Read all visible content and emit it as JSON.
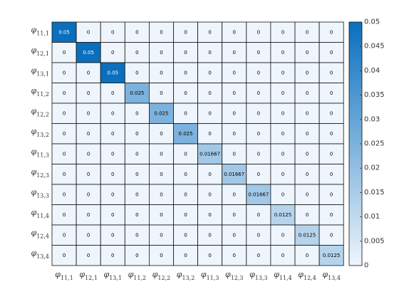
{
  "chart_data": {
    "type": "heatmap",
    "title": "",
    "xlabel": "",
    "ylabel": "",
    "row_labels": [
      {
        "sym": "φ",
        "sub": "11,1"
      },
      {
        "sym": "φ",
        "sub": "12,1"
      },
      {
        "sym": "φ",
        "sub": "13,1"
      },
      {
        "sym": "φ",
        "sub": "11,2"
      },
      {
        "sym": "φ",
        "sub": "12,2"
      },
      {
        "sym": "φ",
        "sub": "13,2"
      },
      {
        "sym": "φ",
        "sub": "11,3"
      },
      {
        "sym": "φ",
        "sub": "12,3"
      },
      {
        "sym": "φ",
        "sub": "13,3"
      },
      {
        "sym": "φ",
        "sub": "11,4"
      },
      {
        "sym": "φ",
        "sub": "12,4"
      },
      {
        "sym": "φ",
        "sub": "13,4"
      }
    ],
    "col_labels": [
      {
        "sym": "φ",
        "sub": "11,1"
      },
      {
        "sym": "φ",
        "sub": "12,1"
      },
      {
        "sym": "φ",
        "sub": "13,1"
      },
      {
        "sym": "φ",
        "sub": "11,2"
      },
      {
        "sym": "φ",
        "sub": "12,2"
      },
      {
        "sym": "φ",
        "sub": "13,2"
      },
      {
        "sym": "φ",
        "sub": "11,3"
      },
      {
        "sym": "φ",
        "sub": "12,3"
      },
      {
        "sym": "φ",
        "sub": "13,3"
      },
      {
        "sym": "φ",
        "sub": "11,4"
      },
      {
        "sym": "φ",
        "sub": "12,4"
      },
      {
        "sym": "φ",
        "sub": "13,4"
      }
    ],
    "diagonal_labels": [
      "0.05",
      "0.05",
      "0.05",
      "0.025",
      "0.025",
      "0.025",
      "0.01667",
      "0.01667",
      "0.01667",
      "0.0125",
      "0.0125",
      "0.0125"
    ],
    "off_diagonal_label": "0",
    "values": [
      [
        0.05,
        0,
        0,
        0,
        0,
        0,
        0,
        0,
        0,
        0,
        0,
        0
      ],
      [
        0,
        0.05,
        0,
        0,
        0,
        0,
        0,
        0,
        0,
        0,
        0,
        0
      ],
      [
        0,
        0,
        0.05,
        0,
        0,
        0,
        0,
        0,
        0,
        0,
        0,
        0
      ],
      [
        0,
        0,
        0,
        0.025,
        0,
        0,
        0,
        0,
        0,
        0,
        0,
        0
      ],
      [
        0,
        0,
        0,
        0,
        0.025,
        0,
        0,
        0,
        0,
        0,
        0,
        0
      ],
      [
        0,
        0,
        0,
        0,
        0,
        0.025,
        0,
        0,
        0,
        0,
        0,
        0
      ],
      [
        0,
        0,
        0,
        0,
        0,
        0,
        0.01667,
        0,
        0,
        0,
        0,
        0
      ],
      [
        0,
        0,
        0,
        0,
        0,
        0,
        0,
        0.01667,
        0,
        0,
        0,
        0
      ],
      [
        0,
        0,
        0,
        0,
        0,
        0,
        0,
        0,
        0.01667,
        0,
        0,
        0
      ],
      [
        0,
        0,
        0,
        0,
        0,
        0,
        0,
        0,
        0,
        0.0125,
        0,
        0
      ],
      [
        0,
        0,
        0,
        0,
        0,
        0,
        0,
        0,
        0,
        0,
        0.0125,
        0
      ],
      [
        0,
        0,
        0,
        0,
        0,
        0,
        0,
        0,
        0,
        0,
        0,
        0.0125
      ]
    ],
    "color_range": [
      0,
      0.05
    ],
    "colorbar": {
      "ticks": [
        0,
        0.005,
        0.01,
        0.015,
        0.02,
        0.025,
        0.03,
        0.035,
        0.04,
        0.045,
        0.05
      ],
      "tick_labels": [
        "0",
        "0.005",
        "0.01",
        "0.015",
        "0.02",
        "0.025",
        "0.03",
        "0.035",
        "0.04",
        "0.045",
        "0.05"
      ],
      "location": "right"
    },
    "colors": {
      "low": "#eef5fc",
      "high": "#0a6fbd",
      "grid_line": "#111111",
      "dark_text": "#000000",
      "light_text": "#ffffff"
    }
  }
}
